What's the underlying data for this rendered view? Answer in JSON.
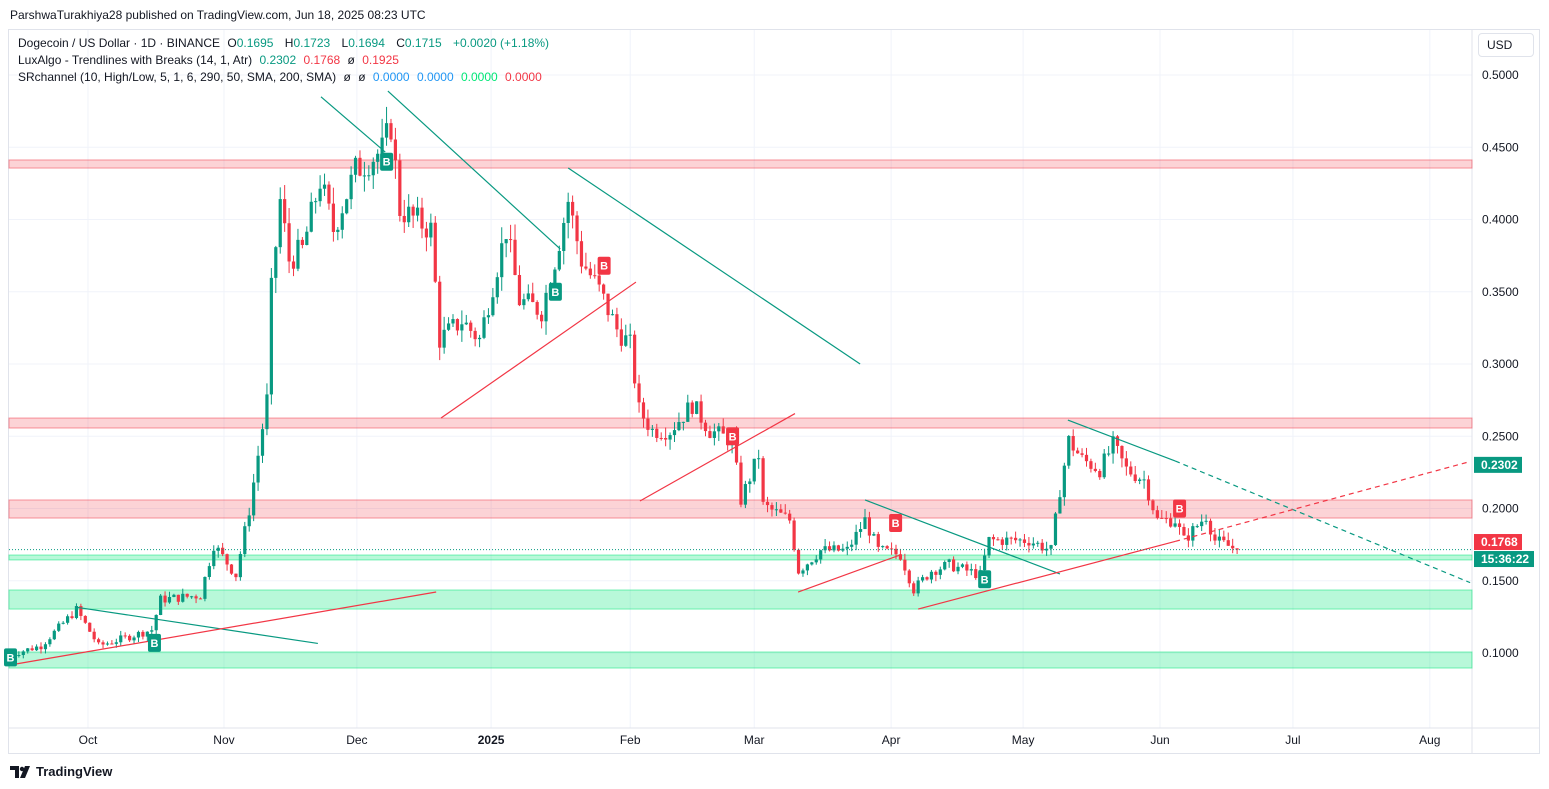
{
  "published": "ParshwaTurakhiya28 published on TradingView.com, Jun 18, 2025 08:23 UTC",
  "legend": {
    "symbol": "Dogecoin / US Dollar · 1D · BINANCE",
    "o_label": "O",
    "o": "0.1695",
    "h_label": "H",
    "h": "0.1723",
    "l_label": "L",
    "l": "0.1694",
    "c_label": "C",
    "c": "0.1715",
    "change": "+0.0020 (+1.18%)",
    "ind1": "LuxAlgo - Trendlines with Breaks (14, 1, Atr)",
    "ind1_v1": "0.2302",
    "ind1_v2": "0.1768",
    "ind1_v3": "ø",
    "ind1_v4": "0.1925",
    "ind2": "SRchannel (10, High/Low, 5, 1, 6, 290, 50, SMA, 200, SMA)",
    "ind2_v1": "ø",
    "ind2_v2": "ø",
    "ind2_v3": "0.0000",
    "ind2_v4": "0.0000",
    "ind2_v5": "0.0000",
    "ind2_v6": "0.0000"
  },
  "currency": "USD",
  "footer": "TradingView",
  "colors": {
    "up": "#089981",
    "down": "#f23645",
    "zone_red": "#f23645",
    "zone_green": "#00e676"
  },
  "chart_data": {
    "type": "candlestick",
    "title": "Dogecoin / US Dollar 1D",
    "ylim": [
      0.06,
      0.52
    ],
    "xlim": [
      0,
      330
    ],
    "y_ticks": [
      "0.5000",
      "0.4500",
      "0.4000",
      "0.3500",
      "0.3000",
      "0.2500",
      "0.2000",
      "0.1500",
      "0.1000"
    ],
    "x_ticks": [
      {
        "day": 17.6,
        "label": "Oct"
      },
      {
        "day": 48.3,
        "label": "Nov"
      },
      {
        "day": 78.3,
        "label": "Dec"
      },
      {
        "day": 108.6,
        "label": "2025"
      },
      {
        "day": 140,
        "label": "Feb"
      },
      {
        "day": 168,
        "label": "Mar"
      },
      {
        "day": 198.9,
        "label": "Apr"
      },
      {
        "day": 228.7,
        "label": "May"
      },
      {
        "day": 259.6,
        "label": "Jun"
      },
      {
        "day": 289.6,
        "label": "Jul"
      },
      {
        "day": 320.5,
        "label": "Aug"
      }
    ],
    "close_path": [
      [
        0,
        0.099
      ],
      [
        7,
        0.105
      ],
      [
        15,
        0.13
      ],
      [
        20,
        0.105
      ],
      [
        32,
        0.116
      ],
      [
        34,
        0.137
      ],
      [
        43,
        0.14
      ],
      [
        46,
        0.175
      ],
      [
        51,
        0.154
      ],
      [
        54,
        0.199
      ],
      [
        58,
        0.275
      ],
      [
        59,
        0.351
      ],
      [
        61,
        0.413
      ],
      [
        63,
        0.372
      ],
      [
        66,
        0.379
      ],
      [
        70,
        0.427
      ],
      [
        73,
        0.393
      ],
      [
        78,
        0.434
      ],
      [
        84,
        0.448
      ],
      [
        86,
        0.465
      ],
      [
        88,
        0.407
      ],
      [
        95,
        0.393
      ],
      [
        97,
        0.317
      ],
      [
        102,
        0.33
      ],
      [
        106,
        0.317
      ],
      [
        112,
        0.393
      ],
      [
        115,
        0.344
      ],
      [
        120,
        0.337
      ],
      [
        123,
        0.372
      ],
      [
        126,
        0.413
      ],
      [
        129,
        0.372
      ],
      [
        133,
        0.351
      ],
      [
        137,
        0.324
      ],
      [
        140,
        0.313
      ],
      [
        142,
        0.268
      ],
      [
        145,
        0.254
      ],
      [
        149,
        0.254
      ],
      [
        154,
        0.272
      ],
      [
        158,
        0.254
      ],
      [
        163,
        0.247
      ],
      [
        165,
        0.206
      ],
      [
        169,
        0.237
      ],
      [
        170,
        0.202
      ],
      [
        176,
        0.192
      ],
      [
        178,
        0.157
      ],
      [
        183,
        0.171
      ],
      [
        189,
        0.171
      ],
      [
        193,
        0.192
      ],
      [
        196,
        0.171
      ],
      [
        201,
        0.168
      ],
      [
        204,
        0.144
      ],
      [
        208,
        0.157
      ],
      [
        212,
        0.161
      ],
      [
        219,
        0.154
      ],
      [
        221,
        0.178
      ],
      [
        226,
        0.178
      ],
      [
        230,
        0.178
      ],
      [
        235,
        0.171
      ],
      [
        237,
        0.213
      ],
      [
        239,
        0.247
      ],
      [
        242,
        0.234
      ],
      [
        246,
        0.227
      ],
      [
        249,
        0.244
      ],
      [
        252,
        0.227
      ],
      [
        256,
        0.22
      ],
      [
        259,
        0.192
      ],
      [
        263,
        0.192
      ],
      [
        265,
        0.178
      ],
      [
        270,
        0.195
      ],
      [
        272,
        0.178
      ],
      [
        277,
        0.1715
      ]
    ],
    "zones": [
      {
        "type": "resistance",
        "top": 0.4412,
        "bottom": 0.4356
      },
      {
        "type": "resistance",
        "top": 0.2626,
        "bottom": 0.2557
      },
      {
        "type": "resistance",
        "top": 0.2059,
        "bottom": 0.1934
      },
      {
        "type": "support",
        "top": 0.1678,
        "bottom": 0.1644
      },
      {
        "type": "support",
        "top": 0.1436,
        "bottom": 0.1304
      },
      {
        "type": "support",
        "top": 0.1007,
        "bottom": 0.0896
      }
    ],
    "trendlines": [
      {
        "kind": "down",
        "from": [
          70.2,
          0.4849
        ],
        "to": [
          84.7,
          0.4467
        ]
      },
      {
        "kind": "down",
        "from": [
          85.3,
          0.4889
        ],
        "to": [
          124.2,
          0.3796
        ]
      },
      {
        "kind": "down",
        "from": [
          126,
          0.4356
        ],
        "to": [
          191.9,
          0.3
        ]
      },
      {
        "kind": "down",
        "from": [
          14.7,
          0.1318
        ],
        "to": [
          69.5,
          0.1066
        ]
      },
      {
        "kind": "down",
        "from": [
          193,
          0.2059
        ],
        "to": [
          237,
          0.1547
        ]
      },
      {
        "kind": "down",
        "from": [
          238.8,
          0.2612
        ],
        "to": [
          263,
          0.2329
        ],
        "ext": [
          329.6,
          0.1487
        ]
      },
      {
        "kind": "up",
        "from": [
          0,
          0.0917
        ],
        "to": [
          96.2,
          0.1422
        ]
      },
      {
        "kind": "up",
        "from": [
          97.3,
          0.2626
        ],
        "to": [
          141.3,
          0.3567
        ]
      },
      {
        "kind": "up",
        "from": [
          142.2,
          0.2052
        ],
        "to": [
          177.2,
          0.2657
        ]
      },
      {
        "kind": "up",
        "from": [
          177.9,
          0.1422
        ],
        "to": [
          200.9,
          0.1678
        ]
      },
      {
        "kind": "up",
        "from": [
          205,
          0.1304
        ],
        "to": [
          263,
          0.1772
        ],
        "ext": [
          329.6,
          0.2325
        ]
      }
    ],
    "break_labels": [
      {
        "day": 84.9,
        "price": 0.44,
        "kind": "bull",
        "text": "B"
      },
      {
        "day": 123,
        "price": 0.35,
        "kind": "bull",
        "text": "B"
      },
      {
        "day": 32.5,
        "price": 0.107,
        "kind": "bull",
        "text": "B"
      },
      {
        "day": 219.9,
        "price": 0.151,
        "kind": "bull",
        "text": "B"
      },
      {
        "day": 0,
        "price": 0.097,
        "kind": "bull",
        "text": "B"
      },
      {
        "day": 134,
        "price": 0.368,
        "kind": "bear",
        "text": "B"
      },
      {
        "day": 163,
        "price": 0.25,
        "kind": "bear",
        "text": "B"
      },
      {
        "day": 199.8,
        "price": 0.19,
        "kind": "bear",
        "text": "B"
      },
      {
        "day": 263.9,
        "price": 0.2,
        "kind": "bear",
        "text": "B"
      }
    ],
    "price_tags": [
      {
        "price": 0.2302,
        "text": "0.2302",
        "color": "#089981"
      },
      {
        "price": 0.1768,
        "text": "0.1768",
        "color": "#f23645"
      }
    ],
    "last_price": 0.1715,
    "countdown": "15:36:22"
  }
}
